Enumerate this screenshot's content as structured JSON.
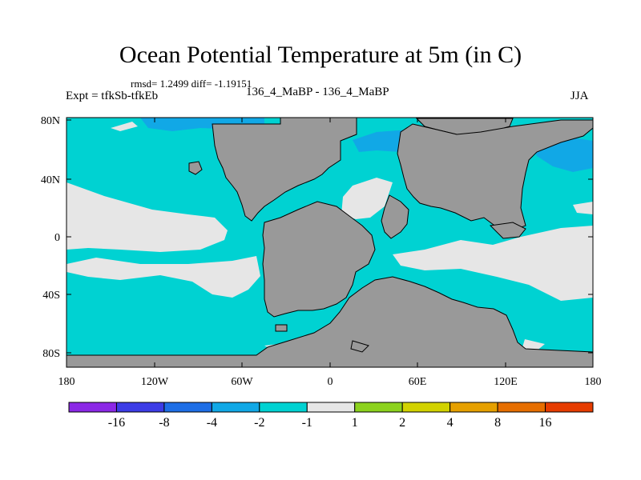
{
  "title": "Ocean Potential Temperature at 5m (in C)",
  "stats": {
    "rmsd_label": "rmsd=",
    "rmsd_value": "1.2499",
    "diff_label": "diff=",
    "diff_value": "-1.19151"
  },
  "expt_label": "Expt = tfkSb-tfkEb",
  "center_label": "136_4_MaBP - 136_4_MaBP",
  "season": "JJA",
  "y_ticks": [
    "80N",
    "40N",
    "0",
    "40S",
    "80S"
  ],
  "x_ticks": [
    "180",
    "120W",
    "60W",
    "0",
    "60E",
    "120E",
    "180"
  ],
  "colors": {
    "land": "#999999",
    "ocean_base": "#00d2d2",
    "light_anomaly": "#e6e6e6",
    "cold_patch": "#11a8e6"
  },
  "colorbar": {
    "colors": [
      "#8b28e6",
      "#3c3ce6",
      "#1e6ee6",
      "#11a8e6",
      "#00d2d2",
      "#e6e6e6",
      "#8cd21e",
      "#d2d200",
      "#e6a000",
      "#e66e00",
      "#e63c00"
    ],
    "labels": [
      "-16",
      "-8",
      "-4",
      "-2",
      "-1",
      "1",
      "2",
      "4",
      "8",
      "16"
    ]
  }
}
